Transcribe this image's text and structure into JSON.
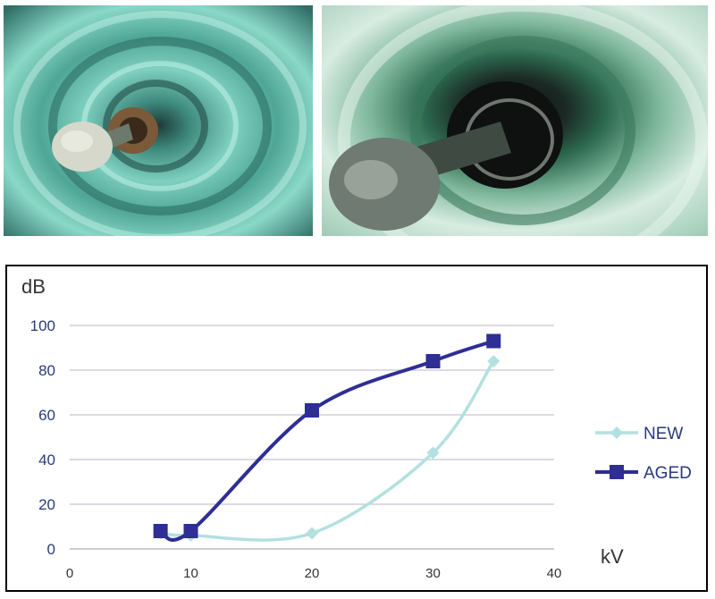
{
  "photos": [
    {
      "name": "new-insulator-photo"
    },
    {
      "name": "aged-insulator-photo"
    }
  ],
  "chart_data": {
    "type": "line",
    "ylabel": "dB",
    "xlabel": "kV",
    "xlim": [
      0,
      40
    ],
    "ylim": [
      0,
      100
    ],
    "x_ticks": [
      0,
      10,
      20,
      30,
      40
    ],
    "y_ticks": [
      0,
      20,
      40,
      60,
      80,
      100
    ],
    "grid": "horizontal",
    "legend_position": "right",
    "series": [
      {
        "name": "NEW",
        "color": "#b3e0e0",
        "marker": "diamond",
        "points": [
          [
            7.5,
            7
          ],
          [
            10,
            6
          ],
          [
            20,
            7
          ],
          [
            30,
            43
          ],
          [
            35,
            84
          ]
        ]
      },
      {
        "name": "AGED",
        "color": "#2e2e95",
        "marker": "square",
        "points": [
          [
            7.5,
            8
          ],
          [
            10,
            8
          ],
          [
            20,
            62
          ],
          [
            30,
            84
          ],
          [
            35,
            93
          ]
        ]
      }
    ]
  }
}
